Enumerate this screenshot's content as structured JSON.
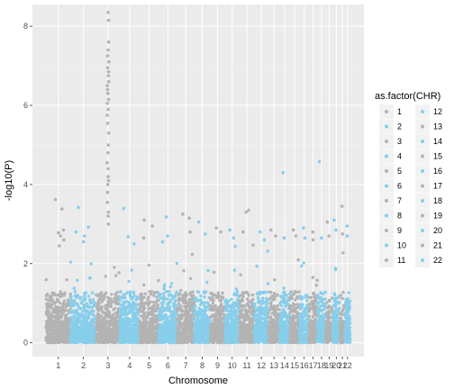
{
  "chart_data": {
    "type": "scatter",
    "title": "",
    "xlabel": "Chromosome",
    "ylabel": "-log10(P)",
    "ylim": [
      -0.35,
      8.55
    ],
    "y_ticks": [
      0,
      2,
      4,
      6,
      8
    ],
    "grid": true,
    "legend": {
      "title": "as.factor(CHR)",
      "placement": "right",
      "columns": 2,
      "entries": [
        "1",
        "2",
        "3",
        "4",
        "5",
        "6",
        "7",
        "8",
        "9",
        "10",
        "11",
        "12",
        "13",
        "14",
        "15",
        "16",
        "17",
        "18",
        "19",
        "20",
        "21",
        "22"
      ]
    },
    "colors": {
      "odd": "#b3b3b3",
      "even": "#87ceeb",
      "panel": "#ebebeb",
      "grid": "#ffffff"
    },
    "chromosomes": [
      {
        "chr": "1",
        "label": "1",
        "extent": [
          0.0,
          1.0
        ],
        "top_hits": [
          3.62,
          3.38,
          2.85,
          2.78,
          2.7,
          2.6,
          2.45
        ]
      },
      {
        "chr": "2",
        "label": "2",
        "extent": [
          1.0,
          2.05
        ],
        "top_hits": [
          3.42,
          2.92,
          2.8,
          2.7,
          2.55
        ]
      },
      {
        "chr": "3",
        "label": "3",
        "extent": [
          2.05,
          3.0
        ],
        "top_hits": [
          8.35,
          8.15,
          7.6,
          7.4,
          7.25,
          7.1,
          6.95,
          6.85,
          6.75,
          6.6,
          6.5,
          6.4,
          6.3,
          6.15,
          6.05,
          5.9,
          5.75,
          5.55,
          5.3,
          5.0,
          4.8,
          4.55,
          4.4,
          4.2,
          4.1,
          4.0,
          3.8,
          3.55,
          3.3,
          3.2,
          3.0
        ]
      },
      {
        "chr": "4",
        "label": "4",
        "extent": [
          3.0,
          3.82
        ],
        "top_hits": [
          3.4,
          2.68,
          2.5
        ]
      },
      {
        "chr": "5",
        "label": "5",
        "extent": [
          3.82,
          4.6
        ],
        "top_hits": [
          3.1,
          2.95,
          2.65
        ]
      },
      {
        "chr": "6",
        "label": "6",
        "extent": [
          4.6,
          5.35
        ],
        "top_hits": [
          3.18,
          2.7,
          2.55
        ]
      },
      {
        "chr": "7",
        "label": "7",
        "extent": [
          5.35,
          6.05
        ],
        "top_hits": [
          3.25,
          3.15,
          2.8
        ]
      },
      {
        "chr": "8",
        "label": "8",
        "extent": [
          6.05,
          6.7
        ],
        "top_hits": [
          3.05,
          2.75
        ]
      },
      {
        "chr": "9",
        "label": "9",
        "extent": [
          6.7,
          7.3
        ],
        "top_hits": [
          2.9,
          2.8
        ]
      },
      {
        "chr": "10",
        "label": "10",
        "extent": [
          7.3,
          7.9
        ],
        "top_hits": [
          2.85,
          2.65
        ]
      },
      {
        "chr": "11",
        "label": "11",
        "extent": [
          7.9,
          8.5
        ],
        "top_hits": [
          3.3,
          3.35,
          2.8
        ]
      },
      {
        "chr": "12",
        "label": "12",
        "extent": [
          8.5,
          9.08
        ],
        "top_hits": [
          2.8,
          2.6
        ]
      },
      {
        "chr": "13",
        "label": "13",
        "extent": [
          9.08,
          9.53
        ],
        "top_hits": [
          2.85,
          2.7
        ]
      },
      {
        "chr": "14",
        "label": "14",
        "extent": [
          9.53,
          9.95
        ],
        "top_hits": [
          4.3,
          2.65
        ]
      },
      {
        "chr": "15",
        "label": "15",
        "extent": [
          9.95,
          10.35
        ],
        "top_hits": [
          2.85,
          2.7
        ]
      },
      {
        "chr": "16",
        "label": "16",
        "extent": [
          10.35,
          10.73
        ],
        "top_hits": [
          2.9,
          2.65
        ]
      },
      {
        "chr": "17",
        "label": "17",
        "extent": [
          10.73,
          11.08
        ],
        "top_hits": [
          2.8,
          2.6
        ]
      },
      {
        "chr": "18",
        "label": "18",
        "extent": [
          11.08,
          11.42
        ],
        "top_hits": [
          4.58,
          2.65
        ]
      },
      {
        "chr": "19",
        "label": "19",
        "extent": [
          11.42,
          11.7
        ],
        "top_hits": [
          3.05,
          2.7
        ]
      },
      {
        "chr": "20",
        "label": "20",
        "extent": [
          11.7,
          12.0
        ],
        "top_hits": [
          3.1,
          2.85
        ]
      },
      {
        "chr": "21",
        "label": "21",
        "extent": [
          12.0,
          12.2
        ],
        "top_hits": [
          3.45,
          2.75
        ]
      },
      {
        "chr": "22",
        "label": "22",
        "extent": [
          12.2,
          12.42
        ],
        "top_hits": [
          2.95,
          2.7
        ]
      }
    ],
    "background_distribution": {
      "max_bulk": 1.3,
      "fade_to": 2.5,
      "points_per_unit": 520,
      "seed": 7
    }
  }
}
